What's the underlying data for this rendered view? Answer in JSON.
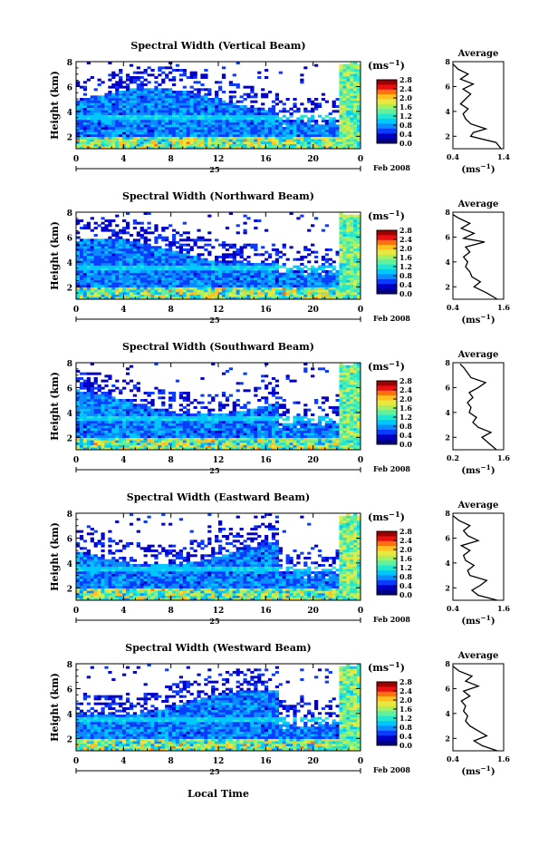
{
  "figure": {
    "bottom_xlabel": "Local Time",
    "colorbar_unit": "(ms",
    "unit_exponent": "−1"
  },
  "colors": {
    "colormap": [
      "#000080",
      "#0000c8",
      "#0a3cff",
      "#0a8cff",
      "#00c8ff",
      "#20e8d0",
      "#60f0a0",
      "#a8f060",
      "#e8e840",
      "#ffc020",
      "#ff7010",
      "#e81010",
      "#a00000"
    ],
    "noise": "#ffffff"
  },
  "chart_data": [
    {
      "type": "heatmap",
      "title": "Spectral Width (Vertical Beam)",
      "ylabel": "Height (km)",
      "xlim": [
        0,
        24
      ],
      "xticks": [
        "0",
        "4",
        "8",
        "12",
        "16",
        "20",
        "0"
      ],
      "date_tick": "25",
      "date_label": "Feb 2008",
      "ylim": [
        1,
        8
      ],
      "yticks": [
        "2",
        "4",
        "6",
        "8"
      ],
      "colorbar_ticks": [
        "0.0",
        "0.4",
        "0.8",
        "1.2",
        "1.6",
        "2.0",
        "2.4",
        "2.8"
      ],
      "clim": [
        0,
        2.8
      ],
      "profile": {
        "title": "Average",
        "xlabel": "(ms",
        "xticks": [
          "0.4",
          "1.4"
        ],
        "xlim": [
          0.4,
          1.4
        ],
        "height_km": [
          1.0,
          1.5,
          2.0,
          2.3,
          2.6,
          3.0,
          3.4,
          3.8,
          4.2,
          4.6,
          5.0,
          5.4,
          5.8,
          6.2,
          6.6,
          7.0,
          7.4,
          7.8
        ],
        "values": [
          1.35,
          1.25,
          0.75,
          0.8,
          1.05,
          0.75,
          0.65,
          0.6,
          0.7,
          0.55,
          0.65,
          0.75,
          0.6,
          0.8,
          0.55,
          0.7,
          0.5,
          0.4
        ]
      }
    },
    {
      "type": "heatmap",
      "title": "Spectral Width (Northward Beam)",
      "ylabel": "Height (km)",
      "xlim": [
        0,
        24
      ],
      "xticks": [
        "0",
        "4",
        "8",
        "12",
        "16",
        "20",
        "0"
      ],
      "date_tick": "25",
      "date_label": "Feb 2008",
      "ylim": [
        1,
        8
      ],
      "yticks": [
        "2",
        "4",
        "6",
        "8"
      ],
      "colorbar_ticks": [
        "0.0",
        "0.4",
        "0.8",
        "1.2",
        "1.6",
        "2.0",
        "2.4",
        "2.8"
      ],
      "clim": [
        0,
        2.8
      ],
      "profile": {
        "title": "Average",
        "xlabel": "(ms",
        "xticks": [
          "0.4",
          "1.6"
        ],
        "xlim": [
          0.4,
          1.6
        ],
        "height_km": [
          1.0,
          1.5,
          2.0,
          2.4,
          2.8,
          3.2,
          3.6,
          4.0,
          4.4,
          4.8,
          5.2,
          5.6,
          5.9,
          6.3,
          6.7,
          7.1,
          7.5,
          7.8
        ],
        "values": [
          1.45,
          1.2,
          0.9,
          1.05,
          0.85,
          0.8,
          0.7,
          0.75,
          0.65,
          0.8,
          0.7,
          1.15,
          0.65,
          0.9,
          0.6,
          0.8,
          0.55,
          0.4
        ]
      }
    },
    {
      "type": "heatmap",
      "title": "Spectral Width (Southward Beam)",
      "ylabel": "Height (km)",
      "xlim": [
        0,
        24
      ],
      "xticks": [
        "0",
        "4",
        "8",
        "12",
        "16",
        "20",
        "0"
      ],
      "date_tick": "25",
      "date_label": "Feb 2008",
      "ylim": [
        1,
        8
      ],
      "yticks": [
        "2",
        "4",
        "6",
        "8"
      ],
      "colorbar_ticks": [
        "0.0",
        "0.4",
        "0.8",
        "1.2",
        "1.6",
        "2.0",
        "2.4",
        "2.8"
      ],
      "clim": [
        0,
        2.8
      ],
      "profile": {
        "title": "Average",
        "xlabel": "(ms",
        "xticks": [
          "0.2",
          "1.6"
        ],
        "xlim": [
          0.2,
          1.6
        ],
        "height_km": [
          1.0,
          1.5,
          2.0,
          2.4,
          2.8,
          3.2,
          3.6,
          4.0,
          4.4,
          4.8,
          5.2,
          5.6,
          6.0,
          6.4,
          6.8,
          7.2,
          7.6,
          7.9
        ],
        "values": [
          1.4,
          1.2,
          1.0,
          1.25,
          0.9,
          0.75,
          0.85,
          0.65,
          0.7,
          0.6,
          0.75,
          0.65,
          0.9,
          1.1,
          0.7,
          0.6,
          0.5,
          0.4
        ]
      }
    },
    {
      "type": "heatmap",
      "title": "Spectral Width (Eastward Beam)",
      "ylabel": "Height (km)",
      "xlim": [
        0,
        24
      ],
      "xticks": [
        "0",
        "4",
        "8",
        "12",
        "16",
        "20",
        "0"
      ],
      "date_tick": "25",
      "date_label": "Feb 2008",
      "ylim": [
        1,
        8
      ],
      "yticks": [
        "2",
        "4",
        "6",
        "8"
      ],
      "colorbar_ticks": [
        "0.0",
        "0.4",
        "0.8",
        "1.2",
        "1.6",
        "2.0",
        "2.4",
        "2.8"
      ],
      "clim": [
        0,
        2.8
      ],
      "profile": {
        "title": "Average",
        "xlabel": "(ms",
        "xticks": [
          "0.4",
          "1.6"
        ],
        "xlim": [
          0.4,
          1.6
        ],
        "height_km": [
          1.0,
          1.4,
          1.8,
          2.2,
          2.6,
          3.0,
          3.4,
          3.8,
          4.2,
          4.6,
          5.0,
          5.4,
          5.8,
          6.2,
          6.6,
          7.0,
          7.4,
          7.8
        ],
        "values": [
          1.45,
          1.0,
          0.85,
          1.05,
          1.2,
          0.8,
          0.75,
          0.9,
          0.7,
          0.65,
          0.8,
          0.6,
          1.0,
          0.75,
          0.65,
          0.8,
          0.55,
          0.4
        ]
      }
    },
    {
      "type": "heatmap",
      "title": "Spectral Width (Westward Beam)",
      "ylabel": "Height (km)",
      "xlim": [
        0,
        24
      ],
      "xticks": [
        "0",
        "4",
        "8",
        "12",
        "16",
        "20",
        "0"
      ],
      "date_tick": "25",
      "date_label": "Feb 2008",
      "ylim": [
        1,
        8
      ],
      "yticks": [
        "2",
        "4",
        "6",
        "8"
      ],
      "colorbar_ticks": [
        "0.0",
        "0.4",
        "0.8",
        "1.2",
        "1.6",
        "2.0",
        "2.4",
        "2.8"
      ],
      "clim": [
        0,
        2.8
      ],
      "profile": {
        "title": "Average",
        "xlabel": "(ms",
        "xticks": [
          "0.4",
          "1.6"
        ],
        "xlim": [
          0.4,
          1.6
        ],
        "height_km": [
          1.0,
          1.4,
          1.8,
          2.2,
          2.6,
          3.0,
          3.4,
          3.8,
          4.2,
          4.6,
          5.0,
          5.4,
          5.8,
          6.2,
          6.6,
          7.0,
          7.4,
          7.8
        ],
        "values": [
          1.45,
          1.1,
          0.9,
          1.2,
          1.0,
          0.8,
          0.7,
          0.75,
          0.65,
          0.7,
          0.6,
          0.8,
          0.65,
          1.0,
          0.7,
          0.85,
          0.55,
          0.4
        ]
      }
    }
  ]
}
